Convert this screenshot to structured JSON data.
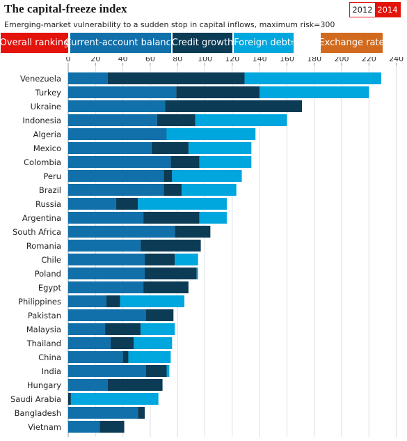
{
  "header": {
    "title": "The capital-freeze index",
    "subtitle": "Emerging-market vulnerability to a sudden stop in capital inflows, maximum risk=300"
  },
  "year_toggle": {
    "options": [
      "2012",
      "2014"
    ],
    "selected": "2014"
  },
  "tabs": [
    {
      "label": "Overall ranking",
      "color": "#e3120b",
      "sup": ""
    },
    {
      "label": "Current-account balance",
      "color": "#1170aa",
      "sup": ""
    },
    {
      "label": "Credit growth",
      "color": "#0b3b55",
      "sup": ""
    },
    {
      "label": "Foreign debt",
      "color": "#00a6de",
      "sup": "†"
    },
    {
      "label": "Exchange rate",
      "color": "#d16a1e",
      "sup": ""
    }
  ],
  "chart_data": {
    "type": "bar",
    "orientation": "horizontal",
    "stacked": true,
    "title": "The capital-freeze index",
    "xlim": [
      0,
      240
    ],
    "xticks": [
      0,
      20,
      40,
      60,
      80,
      100,
      120,
      140,
      160,
      180,
      200,
      220,
      240
    ],
    "xtick_position": "top",
    "grid": true,
    "categories": [
      "Venezuela",
      "Turkey",
      "Ukraine",
      "Indonesia",
      "Algeria",
      "Mexico",
      "Colombia",
      "Peru",
      "Brazil",
      "Russia",
      "Argentina",
      "South Africa",
      "Romania",
      "Chile",
      "Poland",
      "Egypt",
      "Philippines",
      "Pakistan",
      "Malaysia",
      "Thailand",
      "China",
      "India",
      "Hungary",
      "Saudi Arabia",
      "Bangladesh",
      "Vietnam"
    ],
    "series": [
      {
        "name": "Current-account balance",
        "color": "#1170aa",
        "values": [
          29,
          79,
          71,
          65,
          72,
          61,
          75,
          70,
          70,
          35,
          55,
          78,
          53,
          56,
          56,
          55,
          28,
          57,
          27,
          31,
          40,
          57,
          29,
          0,
          51,
          23
        ]
      },
      {
        "name": "Credit growth",
        "color": "#0b3b55",
        "values": [
          100,
          61,
          100,
          28,
          0,
          27,
          21,
          6,
          13,
          16,
          41,
          26,
          44,
          22,
          38,
          33,
          10,
          20,
          26,
          17,
          4,
          15,
          40,
          2,
          5,
          18
        ]
      },
      {
        "name": "Foreign debt",
        "color": "#00a6de",
        "values": [
          100,
          80,
          0,
          67,
          65,
          46,
          38,
          51,
          40,
          65,
          20,
          0,
          0,
          17,
          1,
          0,
          47,
          0,
          25,
          28,
          31,
          2,
          0,
          64,
          0,
          0
        ]
      }
    ]
  }
}
